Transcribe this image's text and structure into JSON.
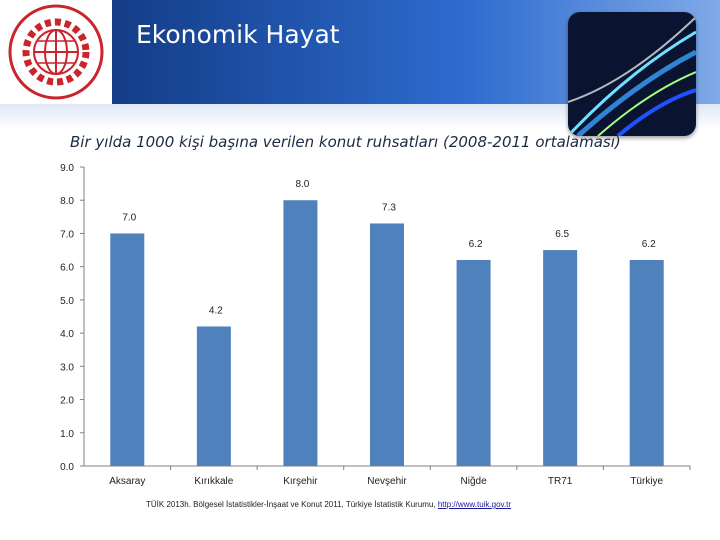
{
  "header": {
    "title": "Ekonomik Hayat",
    "logo_text": "NİĞDE TİCARET ve SANAYİ ODASI"
  },
  "colors": {
    "header_dark": "#0f2f6e",
    "header_light": "#7faae8",
    "bar": "#4f81bd"
  },
  "chart_data": {
    "type": "bar",
    "title": "Bir yılda 1000 kişi başına verilen konut ruhsatları (2008-2011 ortalaması)",
    "categories": [
      "Aksaray",
      "Kırıkkale",
      "Kırşehir",
      "Nevşehir",
      "Niğde",
      "TR71",
      "Türkiye"
    ],
    "values": [
      7.0,
      4.2,
      8.0,
      7.3,
      6.2,
      6.5,
      6.2
    ],
    "value_labels": [
      "7.0",
      "4.2",
      "8.0",
      "7.3",
      "6.2",
      "6.5",
      "6.2"
    ],
    "ylim": [
      0,
      9
    ],
    "yticks": [
      "0.0",
      "1.0",
      "2.0",
      "3.0",
      "4.0",
      "5.0",
      "6.0",
      "7.0",
      "8.0",
      "9.0"
    ],
    "grid": false,
    "legend": "none",
    "xlabel": "",
    "ylabel": ""
  },
  "source": {
    "text": "TÜİK 2013h. Bölgesel İstatistikler-İnşaat ve Konut 2011, Türkiye İstatistik Kurumu,",
    "link": "http://www.tuik.gov.tr"
  }
}
